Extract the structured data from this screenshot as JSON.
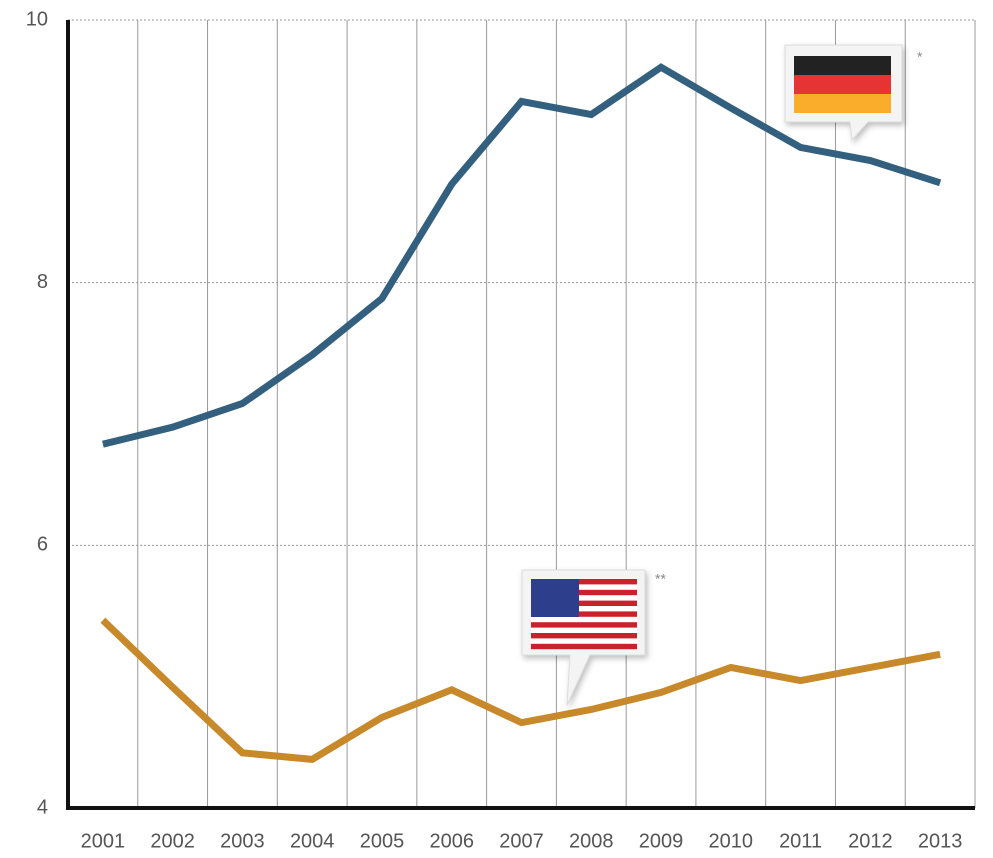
{
  "chart_data": {
    "type": "line",
    "categories": [
      "2001",
      "2002",
      "2003",
      "2004",
      "2005",
      "2006",
      "2007",
      "2008",
      "2009",
      "2010",
      "2011",
      "2012",
      "2013"
    ],
    "series": [
      {
        "color": "#34607f",
        "values": [
          6.77,
          6.9,
          7.08,
          7.45,
          7.88,
          8.75,
          9.38,
          9.28,
          9.64,
          9.33,
          9.03,
          8.93,
          8.76
        ]
      },
      {
        "color": "#c8892a",
        "values": [
          5.43,
          4.92,
          4.42,
          4.37,
          4.69,
          4.9,
          4.65,
          4.75,
          4.88,
          5.07,
          4.97,
          5.07,
          5.17
        ]
      }
    ],
    "ylim": [
      4,
      10
    ],
    "yticks": [
      4,
      6,
      8,
      10
    ],
    "grid": true,
    "annotations": [
      "*",
      "**"
    ]
  }
}
